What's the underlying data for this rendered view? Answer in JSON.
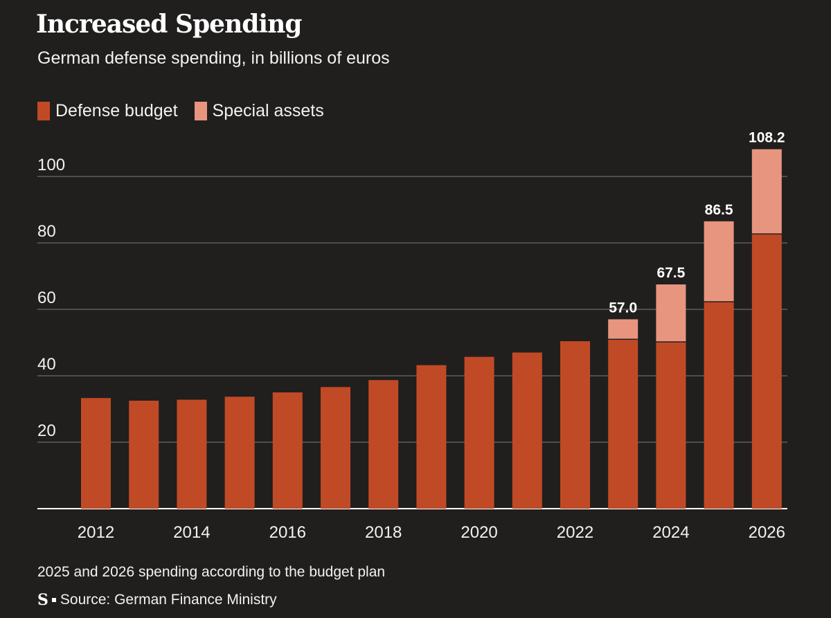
{
  "chart_data": {
    "type": "bar",
    "stacked": true,
    "title": "Increased Spending",
    "subtitle": "German defense spending, in billions of euros",
    "categories": [
      "2012",
      "2013",
      "2014",
      "2015",
      "2016",
      "2017",
      "2018",
      "2019",
      "2020",
      "2021",
      "2022",
      "2023",
      "2024",
      "2025",
      "2026"
    ],
    "x_tick_labels": [
      "2012",
      "2014",
      "2016",
      "2018",
      "2020",
      "2022",
      "2024",
      "2026"
    ],
    "series": [
      {
        "name": "Defense budget",
        "color": "#c14a26",
        "values": [
          33.3,
          32.5,
          32.8,
          33.7,
          35.0,
          36.6,
          38.7,
          43.2,
          45.7,
          47.0,
          50.4,
          51.0,
          50.2,
          62.3,
          82.7
        ]
      },
      {
        "name": "Special assets",
        "color": "#e89580",
        "values": [
          0,
          0,
          0,
          0,
          0,
          0,
          0,
          0,
          0,
          0,
          0,
          6.0,
          17.3,
          24.2,
          25.5
        ]
      }
    ],
    "total_labels": [
      {
        "category": "2023",
        "text": "57.0"
      },
      {
        "category": "2024",
        "text": "67.5"
      },
      {
        "category": "2025",
        "text": "86.5"
      },
      {
        "category": "2026",
        "text": "108.2"
      }
    ],
    "y_ticks": [
      20,
      40,
      60,
      80,
      100
    ],
    "ylim": [
      0,
      110
    ],
    "grid": true,
    "legend_position": "top-left",
    "xlabel": "",
    "ylabel": ""
  },
  "legend": {
    "defense_budget": "Defense budget",
    "special_assets": "Special assets"
  },
  "footer": {
    "note": "2025 and 2026 spending according to the budget plan",
    "logo": "S",
    "source": "Source: German Finance Ministry"
  },
  "colors": {
    "background": "#201f1e",
    "defense_budget": "#c14a26",
    "special_assets": "#e89580",
    "gridline": "#6b6a69"
  }
}
